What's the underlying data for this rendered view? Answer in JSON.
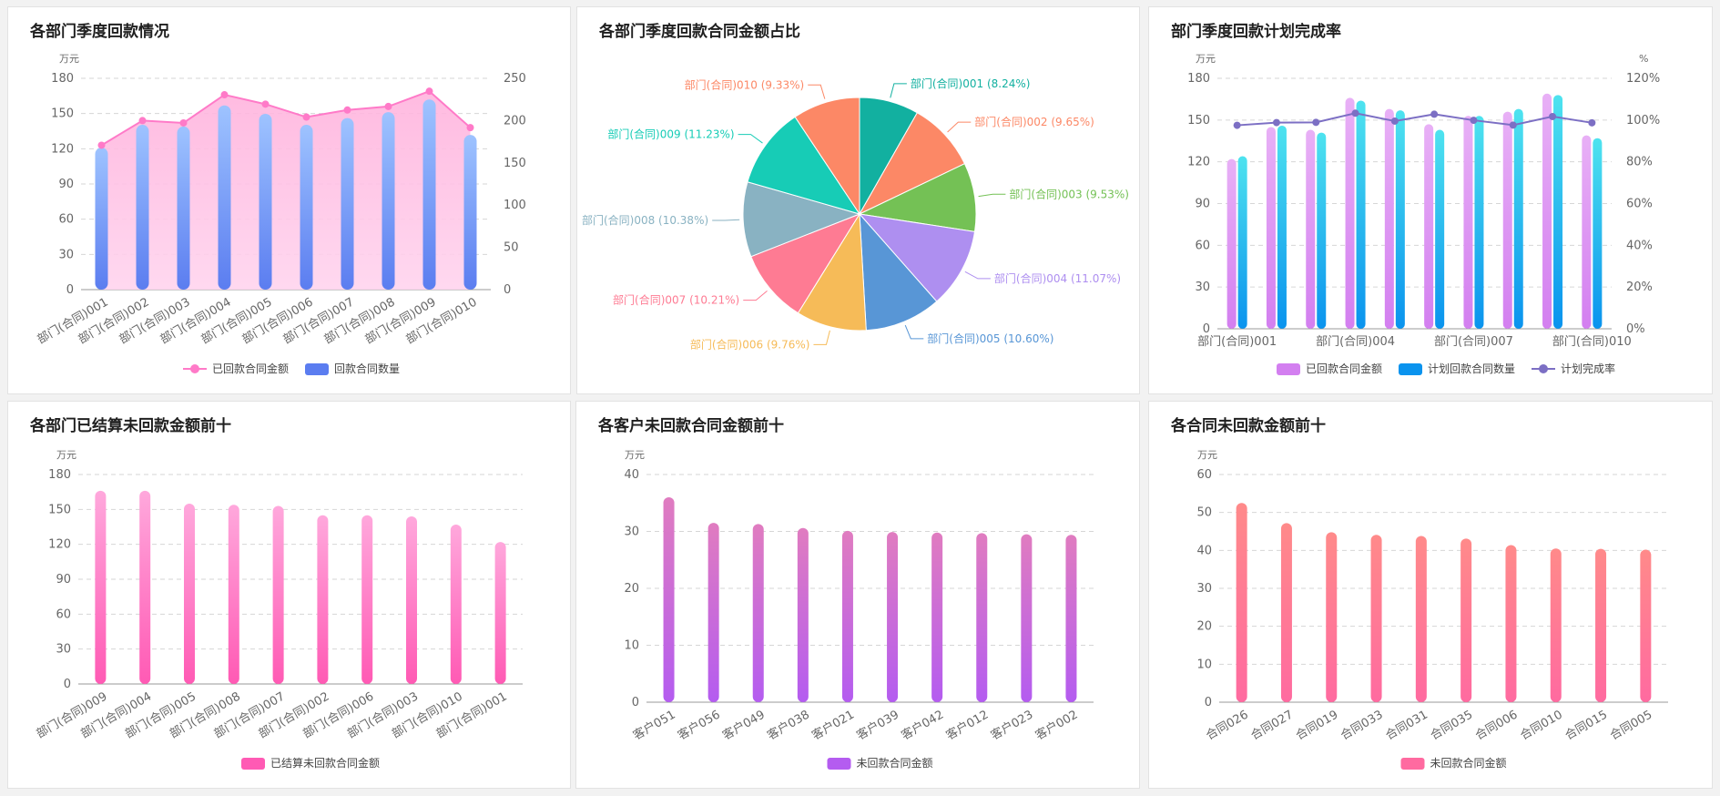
{
  "colors": {
    "pink_light": "#ffc2e6",
    "pink": "#ff5ab4",
    "pink_line": "#ff7ac8",
    "blue_light": "#9ec3ff",
    "blue": "#5b7df0",
    "violet_light": "#e8b0f6",
    "violet": "#d37ff0",
    "cyan_light": "#4ee3ef",
    "cyan": "#0a93ee",
    "rate_line": "#7c6fc4",
    "magenta_top": "#e07cc0",
    "magenta_bottom": "#b45cf0",
    "coral_top": "#ff8a8a",
    "coral_bottom": "#ff6aa0",
    "axis_text": "#666666",
    "grid": "#d6d6d6"
  },
  "panels": [
    {
      "title": "各部门季度回款情况",
      "chart_data": {
        "type": "bar",
        "categories": [
          "部门(合同)001",
          "部门(合同)002",
          "部门(合同)003",
          "部门(合同)004",
          "部门(合同)005",
          "部门(合同)006",
          "部门(合同)007",
          "部门(合同)008",
          "部门(合同)009",
          "部门(合同)010"
        ],
        "y_unit_left": "万元",
        "ylim_left": [
          0,
          180
        ],
        "yticks_left": [
          0,
          30,
          60,
          90,
          120,
          150,
          180
        ],
        "ylim_right": [
          0,
          250
        ],
        "yticks_right": [
          0,
          50,
          100,
          150,
          200,
          250
        ],
        "series": [
          {
            "name": "已回款合同金额",
            "type": "area",
            "axis": "left",
            "values": [
              123,
              144,
              142,
              166,
              158,
              147,
              153,
              156,
              169,
              138
            ]
          },
          {
            "name": "回款合同数量",
            "type": "bar",
            "axis": "right",
            "values": [
              168,
              195,
              193,
              218,
              208,
              195,
              203,
              210,
              225,
              183
            ]
          }
        ],
        "legend": "bottom-center"
      }
    },
    {
      "title": "各部门季度回款合同金额占比",
      "chart_data": {
        "type": "pie",
        "slices": [
          {
            "label": "部门(合同)001 (8.24%)",
            "value": 8.24,
            "color": "#12b0a0"
          },
          {
            "label": "部门(合同)002 (9.65%)",
            "value": 9.65,
            "color": "#fc8866"
          },
          {
            "label": "部门(合同)003 (9.53%)",
            "value": 9.53,
            "color": "#74c155"
          },
          {
            "label": "部门(合同)004 (11.07%)",
            "value": 11.07,
            "color": "#ae8ff0"
          },
          {
            "label": "部门(合同)005 (10.60%)",
            "value": 10.6,
            "color": "#5896d6"
          },
          {
            "label": "部门(合同)006 (9.76%)",
            "value": 9.76,
            "color": "#f6bb58"
          },
          {
            "label": "部门(合同)007 (10.21%)",
            "value": 10.21,
            "color": "#fe7b93"
          },
          {
            "label": "部门(合同)008 (10.38%)",
            "value": 10.38,
            "color": "#89b2c2"
          },
          {
            "label": "部门(合同)009 (11.23%)",
            "value": 11.23,
            "color": "#17ccb6"
          },
          {
            "label": "部门(合同)010 (9.33%)",
            "value": 9.33,
            "color": "#fc8866"
          }
        ]
      }
    },
    {
      "title": "部门季度回款计划完成率",
      "chart_data": {
        "type": "bar",
        "categories": [
          "部门(合同)001",
          "部门(合同)002",
          "部门(合同)003",
          "部门(合同)004",
          "部门(合同)005",
          "部门(合同)006",
          "部门(合同)007",
          "部门(合同)008",
          "部门(合同)009",
          "部门(合同)010"
        ],
        "tick_labels_shown": [
          "部门(合同)001",
          "部门(合同)004",
          "部门(合同)007",
          "部门(合同)010"
        ],
        "y_unit_left": "万元",
        "y_unit_right": "%",
        "ylim_left": [
          0,
          180
        ],
        "yticks_left": [
          0,
          30,
          60,
          90,
          120,
          150,
          180
        ],
        "ylim_right": [
          0,
          120
        ],
        "yticks_right": [
          "0%",
          "20%",
          "40%",
          "60%",
          "80%",
          "100%",
          "120%"
        ],
        "series": [
          {
            "name": "已回款合同金额",
            "type": "bar",
            "axis": "left",
            "values": [
              122,
              145,
              143,
              166,
              158,
              147,
              153,
              156,
              169,
              139
            ]
          },
          {
            "name": "计划回款合同数量",
            "type": "bar",
            "axis": "left",
            "values": [
              124,
              146,
              141,
              164,
              157,
              143,
              153,
              158,
              168,
              137
            ]
          },
          {
            "name": "计划完成率",
            "type": "line",
            "axis": "right",
            "values": [
              97.5,
              98.8,
              98.9,
              103.3,
              99.5,
              102.8,
              99.9,
              97.6,
              101.7,
              98.7
            ]
          }
        ],
        "legend": "bottom-center"
      }
    },
    {
      "title": "各部门已结算未回款金额前十",
      "chart_data": {
        "type": "bar",
        "categories": [
          "部门(合同)009",
          "部门(合同)004",
          "部门(合同)005",
          "部门(合同)008",
          "部门(合同)007",
          "部门(合同)002",
          "部门(合同)006",
          "部门(合同)003",
          "部门(合同)010",
          "部门(合同)001"
        ],
        "y_unit": "万元",
        "ylim": [
          0,
          180
        ],
        "yticks": [
          0,
          30,
          60,
          90,
          120,
          150,
          180
        ],
        "series": [
          {
            "name": "已结算未回款合同金额",
            "values": [
              166,
              166,
              155,
              154,
              153,
              145,
              145,
              144,
              137,
              122
            ]
          }
        ],
        "legend": "bottom-center"
      }
    },
    {
      "title": "各客户未回款合同金额前十",
      "chart_data": {
        "type": "bar",
        "categories": [
          "客户051",
          "客户056",
          "客户049",
          "客户038",
          "客户021",
          "客户039",
          "客户042",
          "客户012",
          "客户023",
          "客户002"
        ],
        "y_unit": "万元",
        "ylim": [
          0,
          40
        ],
        "yticks": [
          0,
          10,
          20,
          30,
          40
        ],
        "series": [
          {
            "name": "未回款合同金额",
            "values": [
              36,
              31.5,
              31.3,
              30.6,
              30.1,
              29.9,
              29.8,
              29.7,
              29.5,
              29.4
            ]
          }
        ],
        "legend": "bottom-center"
      }
    },
    {
      "title": "各合同未回款金额前十",
      "chart_data": {
        "type": "bar",
        "categories": [
          "合同026",
          "合同027",
          "合同019",
          "合同033",
          "合同031",
          "合同035",
          "合同006",
          "合同010",
          "合同015",
          "合同005"
        ],
        "y_unit": "万元",
        "ylim": [
          0,
          60
        ],
        "yticks": [
          0,
          10,
          20,
          30,
          40,
          50,
          60
        ],
        "series": [
          {
            "name": "未回款合同金额",
            "values": [
              52.5,
              47.2,
              44.8,
              44.1,
              43.8,
              43.1,
              41.4,
              40.5,
              40.4,
              40.2
            ]
          }
        ],
        "legend": "bottom-center"
      }
    }
  ]
}
